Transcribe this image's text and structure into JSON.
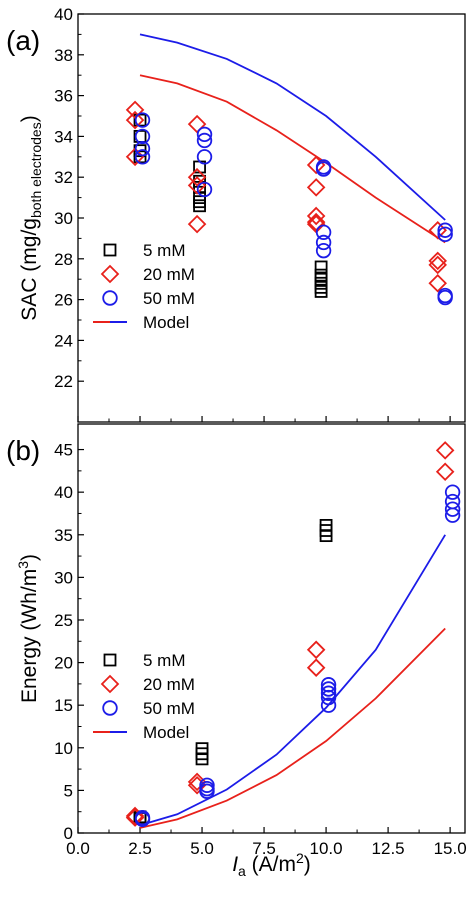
{
  "chart_data": [
    {
      "type": "scatter",
      "panel_label": "(a)",
      "ylabel": "SAC (mg/g",
      "ylabel_sub": "both electrodes",
      "ylabel_close": ")",
      "ylim": [
        20,
        40
      ],
      "yticks": [
        22,
        24,
        26,
        28,
        30,
        32,
        34,
        36,
        38,
        40
      ],
      "xlim": [
        0,
        15.6
      ],
      "legend": [
        "5 mM",
        "20 mM",
        "50 mM",
        "Model"
      ],
      "series": [
        {
          "name": "5 mM",
          "color": "#000000",
          "marker": "square",
          "x": [
            2.5,
            2.5,
            2.5,
            2.5,
            4.9,
            4.9,
            4.9,
            4.9,
            4.9,
            4.9,
            9.8,
            9.8,
            9.8,
            9.8,
            9.8,
            9.8
          ],
          "y": [
            34.8,
            34.0,
            33.3,
            33.0,
            32.5,
            31.8,
            31.5,
            31.0,
            30.8,
            30.6,
            27.6,
            27.2,
            27.0,
            26.8,
            26.6,
            26.4
          ]
        },
        {
          "name": "20 mM",
          "color": "#e8211b",
          "marker": "diamond",
          "x": [
            2.3,
            2.3,
            2.3,
            4.8,
            4.8,
            4.8,
            4.8,
            9.6,
            9.6,
            9.6,
            9.6,
            9.6,
            14.5,
            14.5,
            14.5,
            14.5
          ],
          "y": [
            35.3,
            34.8,
            33.0,
            34.6,
            32.0,
            31.6,
            29.7,
            32.6,
            31.5,
            30.1,
            29.8,
            29.7,
            29.4,
            27.9,
            27.7,
            26.8
          ]
        },
        {
          "name": "50 mM",
          "color": "#1c1ce8",
          "marker": "circle",
          "x": [
            2.6,
            2.6,
            2.6,
            2.6,
            5.1,
            5.1,
            5.1,
            5.1,
            9.9,
            9.9,
            9.9,
            9.9,
            9.9,
            14.8,
            14.8,
            14.8,
            14.8
          ],
          "y": [
            34.8,
            34.0,
            33.4,
            33.0,
            34.1,
            33.8,
            33.0,
            31.4,
            32.5,
            32.4,
            29.3,
            28.8,
            28.4,
            29.4,
            29.2,
            26.2,
            26.1
          ]
        }
      ],
      "model_lines": [
        {
          "name": "Model",
          "color": "#1c1ce8",
          "x": [
            2.5,
            4.0,
            6.0,
            8.0,
            10.0,
            12.0,
            14.8
          ],
          "y": [
            39.0,
            38.6,
            37.8,
            36.6,
            35.0,
            33.0,
            29.9
          ]
        },
        {
          "name": "Model",
          "color": "#e8211b",
          "x": [
            2.5,
            4.0,
            6.0,
            8.0,
            10.0,
            12.0,
            14.8
          ],
          "y": [
            37.0,
            36.6,
            35.7,
            34.3,
            32.7,
            31.0,
            28.8
          ]
        }
      ]
    },
    {
      "type": "scatter",
      "panel_label": "(b)",
      "ylabel": "Energy (Wh/m",
      "ylabel_sup": "3",
      "ylabel_close": ")",
      "ylim": [
        0,
        48
      ],
      "yticks": [
        0,
        5,
        10,
        15,
        20,
        25,
        30,
        35,
        40,
        45
      ],
      "xlim": [
        0,
        15.6
      ],
      "xticks": [
        0.0,
        2.5,
        5.0,
        7.5,
        10.0,
        12.5,
        15.0
      ],
      "xtick_labels": [
        "0.0",
        "2.5",
        "5.0",
        "7.5",
        "10.0",
        "12.5",
        "15.0"
      ],
      "xlabel": "I",
      "xlabel_sub": "a",
      "xlabel_rest": " (A/m",
      "xlabel_sup": "2",
      "xlabel_close": ")",
      "legend": [
        "5 mM",
        "20 mM",
        "50 mM",
        "Model"
      ],
      "series": [
        {
          "name": "5 mM",
          "color": "#000000",
          "marker": "square",
          "x": [
            2.5,
            2.5,
            5.0,
            5.0,
            5.0,
            10.0,
            10.0,
            10.0
          ],
          "y": [
            1.9,
            1.7,
            9.9,
            9.3,
            8.7,
            36.1,
            35.5,
            34.9
          ]
        },
        {
          "name": "20 mM",
          "color": "#e8211b",
          "marker": "diamond",
          "x": [
            2.3,
            2.3,
            4.8,
            4.8,
            9.6,
            9.6,
            14.8,
            14.8
          ],
          "y": [
            2.0,
            1.8,
            6.0,
            5.6,
            21.5,
            19.4,
            44.9,
            42.4
          ]
        },
        {
          "name": "50 mM",
          "color": "#1c1ce8",
          "marker": "circle",
          "x": [
            2.6,
            2.6,
            5.2,
            5.2,
            5.2,
            10.1,
            10.1,
            10.1,
            10.1,
            10.1,
            15.1,
            15.1,
            15.1,
            15.1
          ],
          "y": [
            1.8,
            1.6,
            5.6,
            5.2,
            4.9,
            17.4,
            16.9,
            16.4,
            15.9,
            15.0,
            40.0,
            38.9,
            38.0,
            37.3
          ]
        }
      ],
      "model_lines": [
        {
          "name": "Model",
          "color": "#1c1ce8",
          "x": [
            2.5,
            4.0,
            6.0,
            8.0,
            10.0,
            12.0,
            14.8
          ],
          "y": [
            0.9,
            2.2,
            5.1,
            9.2,
            14.7,
            21.5,
            35.0
          ]
        },
        {
          "name": "Model",
          "color": "#e8211b",
          "x": [
            2.5,
            4.0,
            6.0,
            8.0,
            10.0,
            12.0,
            14.8
          ],
          "y": [
            0.6,
            1.6,
            3.8,
            6.8,
            10.8,
            15.8,
            24.0
          ]
        }
      ]
    }
  ]
}
